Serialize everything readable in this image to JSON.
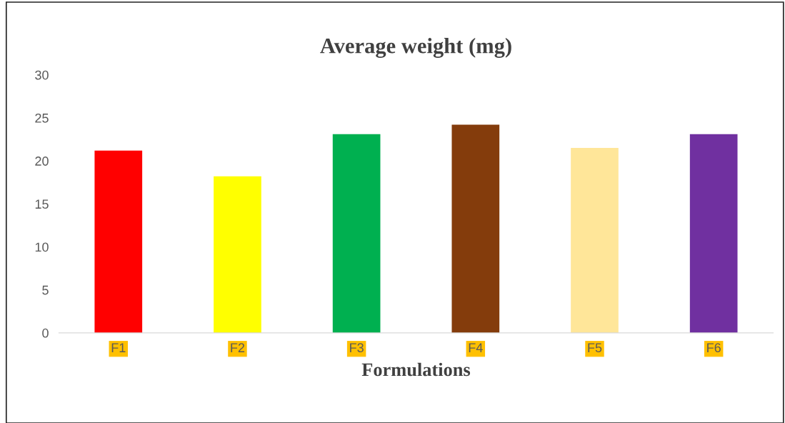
{
  "chart_data": {
    "type": "bar",
    "title": "Average weight (mg)",
    "xlabel": "Formulations",
    "categories": [
      "F1",
      "F2",
      "F3",
      "F4",
      "F5",
      "F6"
    ],
    "values": [
      21.2,
      18.2,
      23.1,
      24.2,
      21.5,
      23.1
    ],
    "colors": [
      "#ff0000",
      "#ffff00",
      "#00b050",
      "#843c0c",
      "#ffe699",
      "#7030a0"
    ],
    "ylim": [
      0,
      30
    ],
    "yticks": [
      0,
      5,
      10,
      15,
      20,
      25,
      30
    ],
    "grid": false,
    "legend": false
  }
}
